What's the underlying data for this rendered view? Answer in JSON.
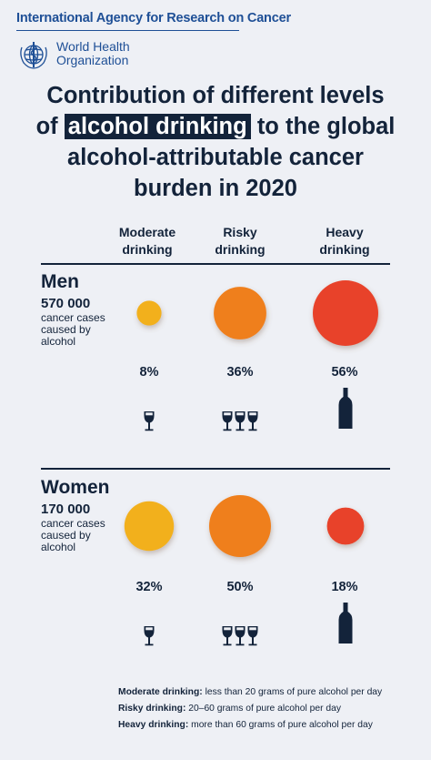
{
  "header": {
    "org_name": "International Agency for Research on Cancer",
    "who_line1": "World Health",
    "who_line2": "Organization"
  },
  "title": {
    "line1": "Contribution of different levels",
    "line2_pre": "of",
    "line2_highlight": "alcohol drinking",
    "line2_post": "to the global",
    "line3": "alcohol-attributable cancer",
    "line4": "burden in 2020"
  },
  "columns": [
    {
      "line1": "Moderate",
      "line2": "drinking"
    },
    {
      "line1": "Risky",
      "line2": "drinking"
    },
    {
      "line1": "Heavy",
      "line2": "drinking"
    }
  ],
  "chart_data": {
    "type": "bubble",
    "title": "Contribution of different levels of alcohol drinking to the global alcohol-attributable cancer burden in 2020",
    "categories": [
      "Moderate drinking",
      "Risky drinking",
      "Heavy drinking"
    ],
    "series": [
      {
        "name": "Men",
        "total": "570 000",
        "values": [
          8,
          36,
          56
        ],
        "labels": [
          "8%",
          "36%",
          "56%"
        ]
      },
      {
        "name": "Women",
        "total": "170 000",
        "values": [
          32,
          50,
          18
        ],
        "labels": [
          "32%",
          "50%",
          "18%"
        ]
      }
    ],
    "colors": [
      "#f2b01e",
      "#ef7f1a",
      "#e8432a"
    ]
  },
  "groups": [
    {
      "title": "Men",
      "count": "570 000",
      "desc1": "cancer cases",
      "desc2": "caused by",
      "desc3": "alcohol"
    },
    {
      "title": "Women",
      "count": "170 000",
      "desc1": "cancer cases",
      "desc2": "caused by",
      "desc3": "alcohol"
    }
  ],
  "icons": {
    "moderate": "wine-glass-icon",
    "risky": "three-wine-glasses-icon",
    "heavy": "bottle-icon"
  },
  "legend": [
    {
      "term": "Moderate drinking:",
      "def": "less than 20 grams of pure alcohol per day"
    },
    {
      "term": "Risky drinking:",
      "def": "20–60 grams of pure alcohol per day"
    },
    {
      "term": "Heavy drinking:",
      "def": "more than 60 grams of pure alcohol per day"
    }
  ]
}
